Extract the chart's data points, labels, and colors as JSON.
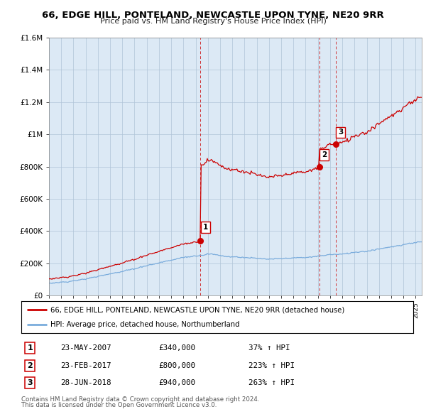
{
  "title_line1": "66, EDGE HILL, PONTELAND, NEWCASTLE UPON TYNE, NE20 9RR",
  "title_line2": "Price paid vs. HM Land Registry's House Price Index (HPI)",
  "sales": [
    {
      "num": 1,
      "date_str": "23-MAY-2007",
      "date_x": 2007.39,
      "price": 340000,
      "pct": "37%",
      "dir": "↑"
    },
    {
      "num": 2,
      "date_str": "23-FEB-2017",
      "date_x": 2017.14,
      "price": 800000,
      "pct": "223%",
      "dir": "↑"
    },
    {
      "num": 3,
      "date_str": "28-JUN-2018",
      "date_x": 2018.49,
      "price": 940000,
      "pct": "263%",
      "dir": "↑"
    }
  ],
  "legend_property": "66, EDGE HILL, PONTELAND, NEWCASTLE UPON TYNE, NE20 9RR (detached house)",
  "legend_hpi": "HPI: Average price, detached house, Northumberland",
  "footnote1": "Contains HM Land Registry data © Crown copyright and database right 2024.",
  "footnote2": "This data is licensed under the Open Government Licence v3.0.",
  "ylim": [
    0,
    1600000
  ],
  "xlim_start": 1995,
  "xlim_end": 2025.5,
  "red_color": "#cc0000",
  "blue_color": "#7aacdc",
  "chart_bg": "#dce9f5",
  "background_color": "#ffffff",
  "grid_color": "#b0c4d8"
}
